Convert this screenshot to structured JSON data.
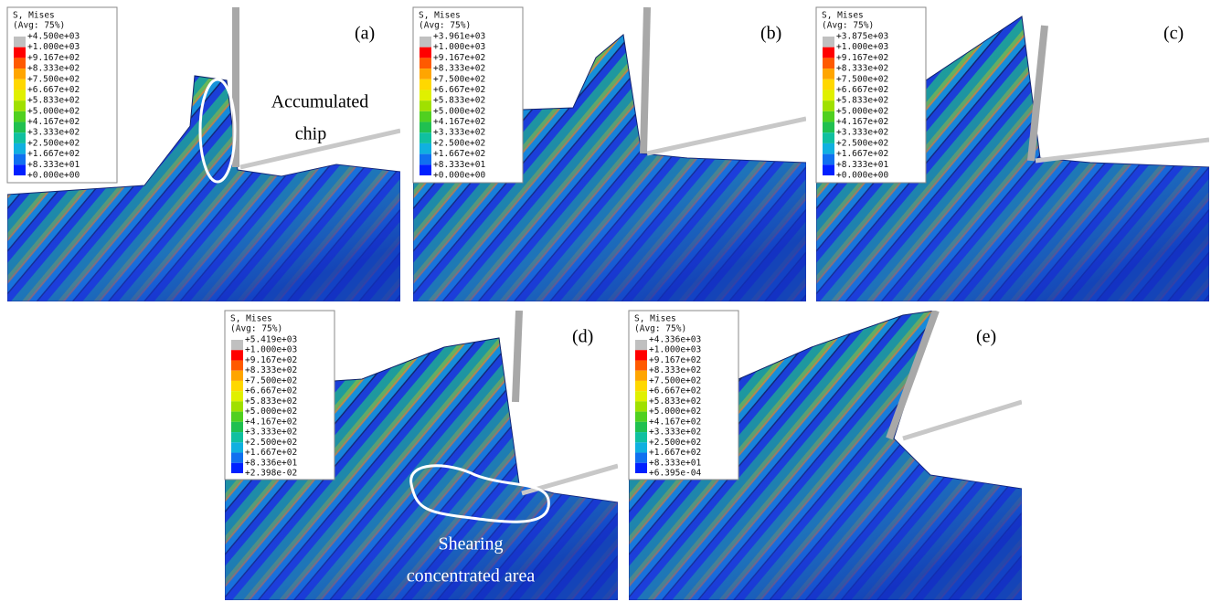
{
  "panels": [
    {
      "label": "(a)",
      "legend": {
        "title": "S, Mises",
        "subtitle": "(Avg: 75%)",
        "levels": [
          "+4.500e+03",
          "+1.000e+03",
          "+9.167e+02",
          "+8.333e+02",
          "+7.500e+02",
          "+6.667e+02",
          "+5.833e+02",
          "+5.000e+02",
          "+4.167e+02",
          "+3.333e+02",
          "+2.500e+02",
          "+1.667e+02",
          "+8.333e+01",
          "+0.000e+00"
        ]
      }
    },
    {
      "label": "(b)",
      "legend": {
        "title": "S, Mises",
        "subtitle": "(Avg: 75%)",
        "levels": [
          "+3.961e+03",
          "+1.000e+03",
          "+9.167e+02",
          "+8.333e+02",
          "+7.500e+02",
          "+6.667e+02",
          "+5.833e+02",
          "+5.000e+02",
          "+4.167e+02",
          "+3.333e+02",
          "+2.500e+02",
          "+1.667e+02",
          "+8.333e+01",
          "+0.000e+00"
        ]
      }
    },
    {
      "label": "(c)",
      "legend": {
        "title": "S, Mises",
        "subtitle": "(Avg: 75%)",
        "levels": [
          "+3.875e+03",
          "+1.000e+03",
          "+9.167e+02",
          "+8.333e+02",
          "+7.500e+02",
          "+6.667e+02",
          "+5.833e+02",
          "+5.000e+02",
          "+4.167e+02",
          "+3.333e+02",
          "+2.500e+02",
          "+1.667e+02",
          "+8.333e+01",
          "+0.000e+00"
        ]
      }
    },
    {
      "label": "(d)",
      "legend": {
        "title": "S, Mises",
        "subtitle": "(Avg: 75%)",
        "levels": [
          "+5.419e+03",
          "+1.000e+03",
          "+9.167e+02",
          "+8.333e+02",
          "+7.500e+02",
          "+6.667e+02",
          "+5.833e+02",
          "+5.000e+02",
          "+4.167e+02",
          "+3.333e+02",
          "+2.500e+02",
          "+1.667e+02",
          "+8.336e+01",
          "+2.398e-02"
        ]
      }
    },
    {
      "label": "(e)",
      "legend": {
        "title": "S, Mises",
        "subtitle": "(Avg: 75%)",
        "levels": [
          "+4.336e+03",
          "+1.000e+03",
          "+9.167e+02",
          "+8.333e+02",
          "+7.500e+02",
          "+6.667e+02",
          "+5.833e+02",
          "+5.000e+02",
          "+4.167e+02",
          "+3.333e+02",
          "+2.500e+02",
          "+1.667e+02",
          "+8.333e+01",
          "+6.395e-04"
        ]
      }
    }
  ],
  "annotations": {
    "accumulated_chip": [
      "Accumulated",
      "chip"
    ],
    "shearing_area": [
      "Shearing",
      "concentrated area"
    ]
  }
}
